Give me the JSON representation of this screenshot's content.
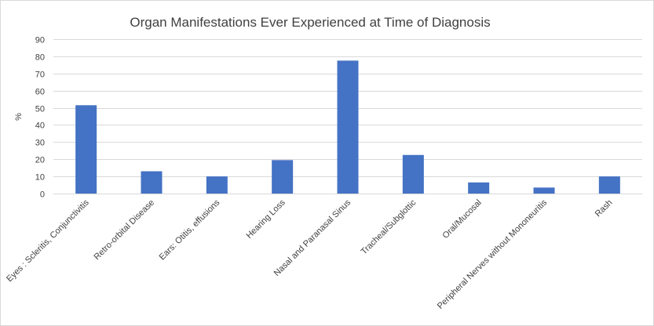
{
  "chart_data": {
    "type": "bar",
    "title": "Organ Manifestations Ever Experienced at Time of Diagnosis",
    "xlabel": "",
    "ylabel": "%",
    "ylim": [
      0,
      90
    ],
    "yticks": [
      0,
      10,
      20,
      30,
      40,
      50,
      60,
      70,
      80,
      90
    ],
    "grid": true,
    "bar_color": "#4472C4",
    "categories": [
      "Eyes : Scleritis, Conjunctivitis",
      "Retro-orbital Disease",
      "Ears: Otitis, effusions",
      "Hearing Loss",
      "Nasal and Paranasal Sinus",
      "Tracheal/Subglottic",
      "Oral/Mucosal",
      "Peripheral Nerves without Mononeuritis",
      "Rash"
    ],
    "values": [
      51.5,
      13,
      10,
      19.5,
      77.5,
      22.5,
      6.5,
      3.5,
      10
    ]
  }
}
